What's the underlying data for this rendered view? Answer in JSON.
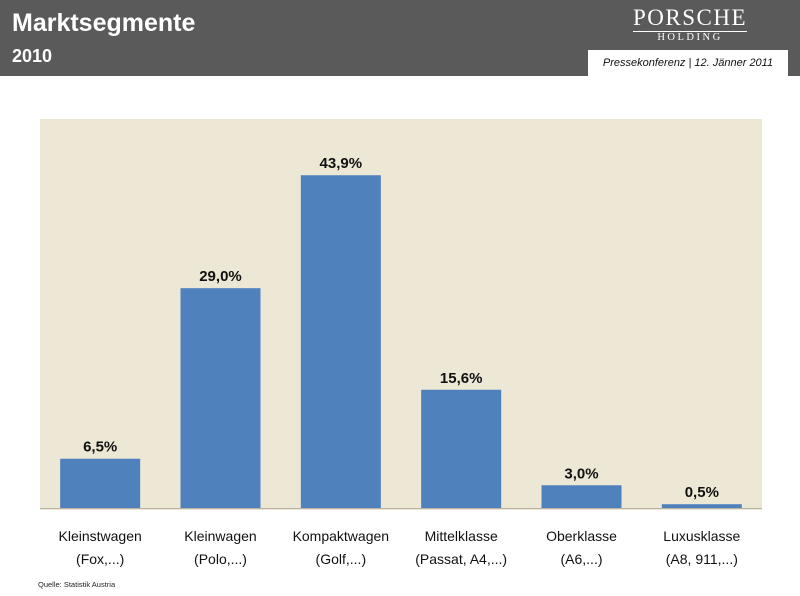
{
  "header": {
    "title": "Marktsegmente",
    "subtitle": "2010",
    "logo_main": "PORSCHE",
    "logo_sub": "HOLDING",
    "event": "Pressekonferenz | 12. Jänner 2011"
  },
  "footer": {
    "source": "Quelle: Statistik Austria"
  },
  "colors": {
    "bar": "#4f81bd",
    "plot_background": "#ede7d6",
    "header_background": "#5a5a5a"
  },
  "chart_data": {
    "type": "bar",
    "categories": [
      [
        "Kleinstwagen",
        "(Fox,...)"
      ],
      [
        "Kleinwagen",
        "(Polo,...)"
      ],
      [
        "Kompaktwagen",
        "(Golf,...)"
      ],
      [
        "Mittelklasse",
        "(Passat, A4,...)"
      ],
      [
        "Oberklasse",
        "(A6,...)"
      ],
      [
        "Luxusklasse",
        "(A8, 911,...)"
      ]
    ],
    "values": [
      6.5,
      29.0,
      43.9,
      15.6,
      3.0,
      0.5
    ],
    "data_labels": [
      "6,5%",
      "29,0%",
      "43,9%",
      "15,6%",
      "3,0%",
      "0,5%"
    ],
    "unit": "%",
    "ylim": [
      0,
      50
    ],
    "grid": false,
    "legend": "none"
  }
}
